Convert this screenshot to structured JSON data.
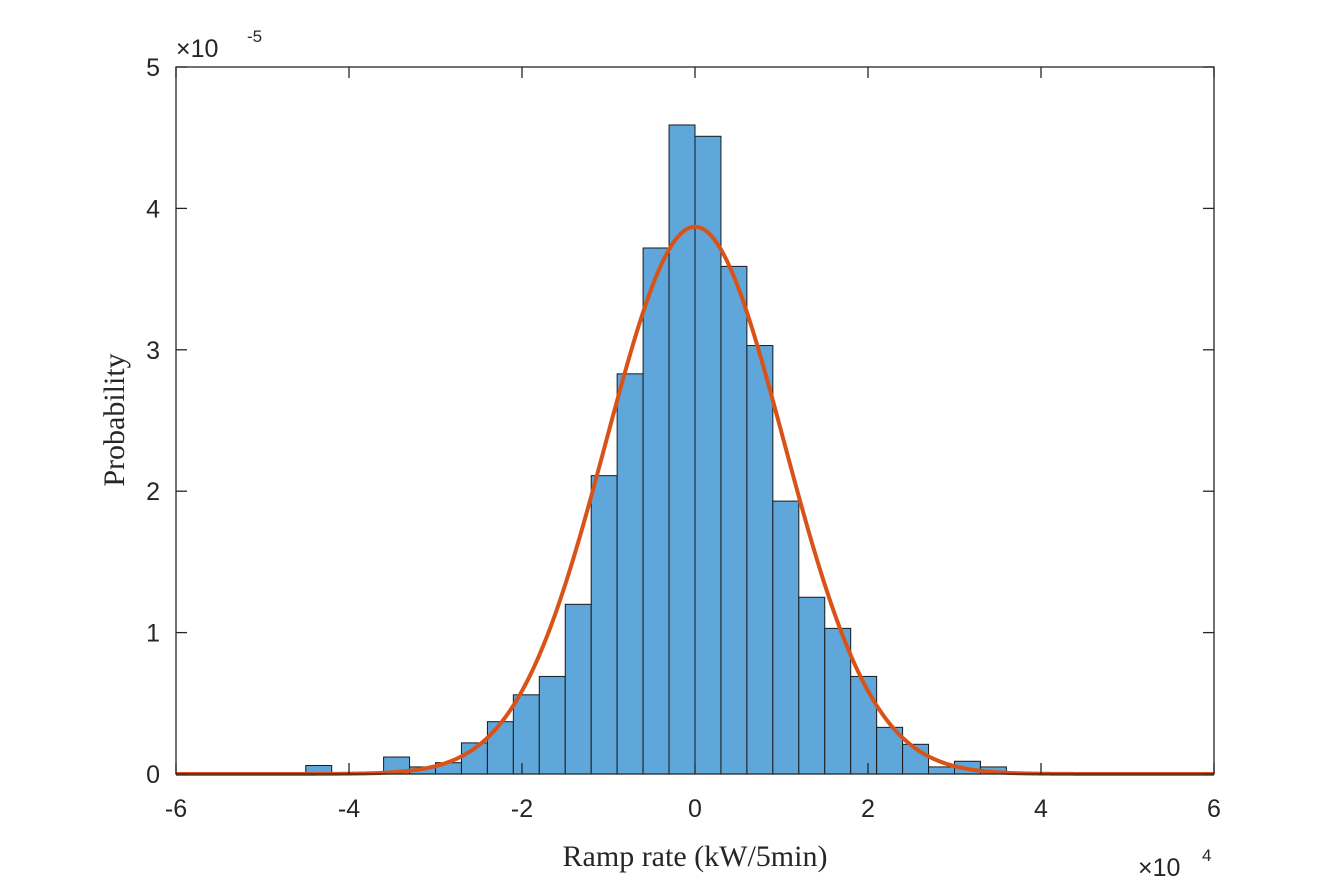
{
  "chart_data": {
    "type": "bar",
    "xlabel": "Ramp rate (kW/5min)",
    "ylabel": "Probability",
    "xlim": [
      -6,
      6
    ],
    "ylim": [
      0,
      5
    ],
    "x_scale_label": {
      "base": "×10",
      "exponent": "4"
    },
    "y_scale_label": {
      "base": "×10",
      "exponent": "-5"
    },
    "x_ticks": [
      "-6",
      "-4",
      "-2",
      "0",
      "2",
      "4",
      "6"
    ],
    "y_ticks": [
      "0",
      "1",
      "2",
      "3",
      "4",
      "5"
    ],
    "grid": false,
    "legend": "none",
    "bins": {
      "edges": [
        -4.5,
        -4.2,
        -3.9,
        -3.6,
        -3.3,
        -3.0,
        -2.7,
        -2.4,
        -2.1,
        -1.8,
        -1.5,
        -1.2,
        -0.9,
        -0.6,
        -0.3,
        0.0,
        0.3,
        0.6,
        0.9,
        1.2,
        1.5,
        1.8,
        2.1,
        2.4,
        2.7,
        3.0,
        3.3,
        3.6
      ],
      "values": [
        0.06,
        0.0,
        0.0,
        0.12,
        0.05,
        0.08,
        0.22,
        0.37,
        0.56,
        0.69,
        1.2,
        2.11,
        2.83,
        3.72,
        4.59,
        4.51,
        3.59,
        3.03,
        1.93,
        1.25,
        1.03,
        0.69,
        0.33,
        0.21,
        0.05,
        0.09,
        0.05
      ]
    },
    "fit_curve": {
      "type": "normal",
      "mean": 0.0,
      "std": 1.03,
      "peak": 3.87
    },
    "colors": {
      "bars": "#5FA7DA",
      "bar_edge": "#1a1a1a",
      "curve": "#D95319",
      "axes": "#262626"
    }
  }
}
